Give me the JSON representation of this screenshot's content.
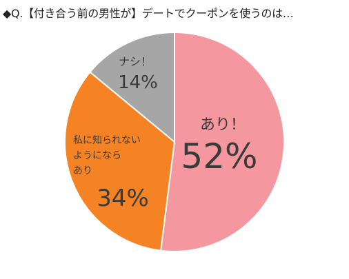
{
  "title": "◆Q.【付き合う前の男性が】デートでクーポンを使うのは…",
  "chart_data": {
    "type": "pie",
    "unit": "%",
    "slices": [
      {
        "label": "あり！",
        "value": 52,
        "color": "#f4979e"
      },
      {
        "label": "私に知られないようにならあり",
        "value": 34,
        "color": "#f58323"
      },
      {
        "label": "ナシ！",
        "value": 14,
        "color": "#a6a6a6"
      }
    ]
  }
}
